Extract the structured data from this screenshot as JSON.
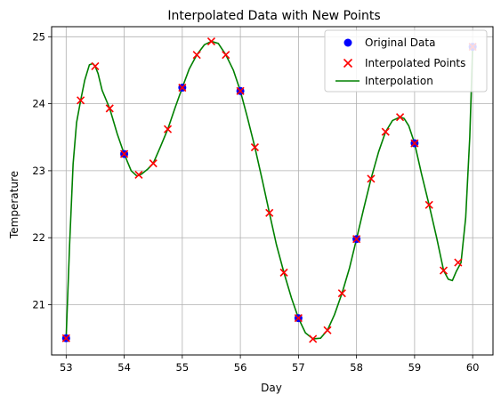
{
  "chart_data": {
    "type": "scatter",
    "title": "Interpolated Data with New Points",
    "xlabel": "Day",
    "ylabel": "Temperature",
    "xlim": [
      52.75,
      60.35
    ],
    "ylim": [
      20.25,
      25.15
    ],
    "xticks": [
      "53",
      "54",
      "55",
      "56",
      "57",
      "58",
      "59",
      "60"
    ],
    "yticks": [
      "21",
      "22",
      "23",
      "24",
      "25"
    ],
    "grid": true,
    "legend_position": "top-right",
    "original": {
      "name": "Original Data",
      "color": "#0000ff",
      "x": [
        53,
        54,
        55,
        56,
        57,
        58,
        59,
        60
      ],
      "y": [
        20.5,
        23.25,
        24.24,
        24.19,
        20.8,
        21.98,
        23.41,
        24.85
      ]
    },
    "interpolated_points": {
      "name": "Interpolated Points",
      "color": "#ff0000",
      "x": [
        53,
        53.25,
        53.5,
        53.75,
        54,
        54.25,
        54.5,
        54.75,
        55,
        55.25,
        55.5,
        55.75,
        56,
        56.25,
        56.5,
        56.75,
        57,
        57.25,
        57.5,
        57.75,
        58,
        58.25,
        58.5,
        58.75,
        59,
        59.25,
        59.5,
        59.75,
        60
      ],
      "y": [
        20.5,
        24.05,
        24.56,
        23.93,
        23.25,
        22.94,
        23.11,
        23.62,
        24.24,
        24.73,
        24.93,
        24.73,
        24.19,
        23.35,
        22.37,
        21.48,
        20.8,
        20.49,
        20.62,
        21.17,
        21.98,
        22.88,
        23.58,
        23.8,
        23.41,
        22.49,
        21.51,
        21.63,
        24.85
      ]
    },
    "interpolation": {
      "name": "Interpolation",
      "color": "#008000",
      "x": [
        53,
        53.06,
        53.12,
        53.18,
        53.25,
        53.32,
        53.4,
        53.46,
        53.5,
        53.55,
        53.62,
        53.75,
        53.88,
        54,
        54.12,
        54.22,
        54.3,
        54.4,
        54.5,
        54.62,
        54.75,
        54.88,
        55,
        55.12,
        55.25,
        55.38,
        55.5,
        55.62,
        55.75,
        55.88,
        56,
        56.12,
        56.25,
        56.38,
        56.5,
        56.62,
        56.75,
        56.88,
        57,
        57.12,
        57.25,
        57.38,
        57.5,
        57.62,
        57.75,
        57.88,
        58,
        58.12,
        58.25,
        58.38,
        58.5,
        58.62,
        58.75,
        58.82,
        58.9,
        59,
        59.12,
        59.25,
        59.38,
        59.5,
        59.58,
        59.65,
        59.72,
        59.8,
        59.88,
        59.95,
        60
      ],
      "y": [
        20.5,
        21.9,
        23.1,
        23.72,
        24.05,
        24.35,
        24.58,
        24.6,
        24.56,
        24.45,
        24.2,
        23.93,
        23.55,
        23.25,
        23.0,
        22.92,
        22.95,
        23.02,
        23.11,
        23.35,
        23.62,
        23.95,
        24.24,
        24.52,
        24.73,
        24.88,
        24.93,
        24.9,
        24.73,
        24.5,
        24.19,
        23.8,
        23.35,
        22.85,
        22.37,
        21.9,
        21.48,
        21.1,
        20.8,
        20.58,
        20.49,
        20.5,
        20.62,
        20.85,
        21.17,
        21.55,
        21.98,
        22.42,
        22.88,
        23.28,
        23.58,
        23.75,
        23.8,
        23.78,
        23.67,
        23.41,
        22.95,
        22.49,
        22.0,
        21.51,
        21.38,
        21.36,
        21.5,
        21.63,
        22.3,
        23.5,
        24.85
      ]
    }
  }
}
